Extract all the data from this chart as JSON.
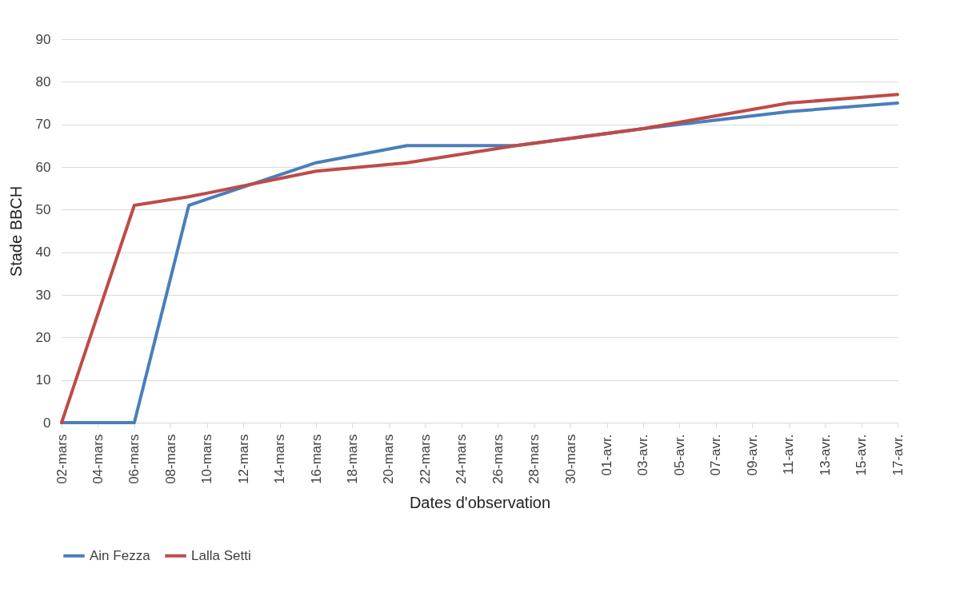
{
  "chart_data": {
    "type": "line",
    "xlabel": "Dates d'observation",
    "ylabel": "Stade  BBCH",
    "x": [
      "--03-02",
      "--03-06",
      "--03-09",
      "--03-16",
      "--03-21",
      "--03-27",
      "--04-03",
      "--04-11",
      "--04-17"
    ],
    "series": [
      {
        "name": "Ain Fezza",
        "color": "#4a7ebb",
        "values": [
          0,
          0,
          51,
          61,
          65,
          65,
          69,
          73,
          75
        ]
      },
      {
        "name": "Lalla Setti",
        "color": "#be4b48",
        "values": [
          0,
          51,
          53,
          59,
          61,
          65,
          69,
          75,
          77
        ]
      }
    ],
    "xlim": [
      "--03-02",
      "--04-17"
    ],
    "xticks": [
      {
        "value": "--03-02",
        "label": "02-mars"
      },
      {
        "value": "--03-04",
        "label": "04-mars"
      },
      {
        "value": "--03-06",
        "label": "06-mars"
      },
      {
        "value": "--03-08",
        "label": "08-mars"
      },
      {
        "value": "--03-10",
        "label": "10-mars"
      },
      {
        "value": "--03-12",
        "label": "12-mars"
      },
      {
        "value": "--03-14",
        "label": "14-mars"
      },
      {
        "value": "--03-16",
        "label": "16-mars"
      },
      {
        "value": "--03-18",
        "label": "18-mars"
      },
      {
        "value": "--03-20",
        "label": "20-mars"
      },
      {
        "value": "--03-22",
        "label": "22-mars"
      },
      {
        "value": "--03-24",
        "label": "24-mars"
      },
      {
        "value": "--03-26",
        "label": "26-mars"
      },
      {
        "value": "--03-28",
        "label": "28-mars"
      },
      {
        "value": "--03-30",
        "label": "30-mars"
      },
      {
        "value": "--04-01",
        "label": "01-avr."
      },
      {
        "value": "--04-03",
        "label": "03-avr."
      },
      {
        "value": "--04-05",
        "label": "05-avr."
      },
      {
        "value": "--04-07",
        "label": "07-avr."
      },
      {
        "value": "--04-09",
        "label": "09-avr."
      },
      {
        "value": "--04-11",
        "label": "11-avr."
      },
      {
        "value": "--04-13",
        "label": "13-avr."
      },
      {
        "value": "--04-15",
        "label": "15-avr."
      },
      {
        "value": "--04-17",
        "label": "17-avr."
      }
    ],
    "ylim": [
      0,
      90
    ],
    "yticks": [
      0,
      10,
      20,
      30,
      40,
      50,
      60,
      70,
      80,
      90
    ],
    "grid": "y",
    "legend": "bottom",
    "marker": "none",
    "line_style": "solid"
  }
}
